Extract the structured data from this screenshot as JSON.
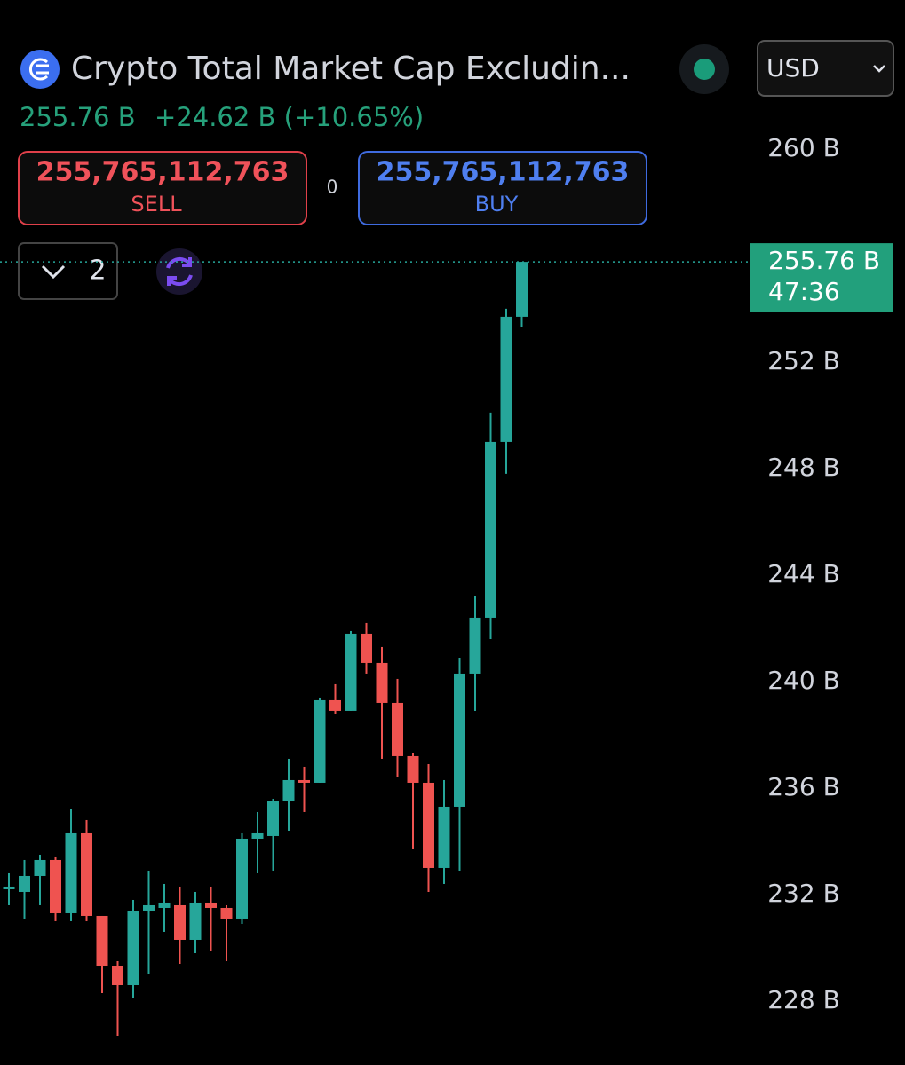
{
  "header": {
    "title": "Crypto Total Market Cap Excludin...",
    "currency": "USD",
    "price": "255.76 B",
    "change": "+24.62 B (+10.65%)",
    "sell_price": "255,765,112,763",
    "sell_label": "SELL",
    "spread": "0",
    "buy_price": "255,765,112,763",
    "buy_label": "BUY",
    "indicator_count": "2"
  },
  "chart_data": {
    "type": "candlestick",
    "up_color": "#26a69a",
    "down_color": "#ef5350",
    "open": [
      232.2,
      232.1,
      232.7,
      233.3,
      231.3,
      234.3,
      231.2,
      229.3,
      228.6,
      231.4,
      231.5,
      231.6,
      230.3,
      231.7,
      231.5,
      231.1,
      234.1,
      234.2,
      235.5,
      236.3,
      236.2,
      239.3,
      238.9,
      241.8,
      240.7,
      239.2,
      237.2,
      236.2,
      233.0,
      235.3,
      240.3,
      242.4,
      249.0,
      253.7
    ],
    "high": [
      232.8,
      233.3,
      233.5,
      233.4,
      235.2,
      234.8,
      231.2,
      229.5,
      231.8,
      232.9,
      232.4,
      232.3,
      232.1,
      232.3,
      231.6,
      234.3,
      235.1,
      235.6,
      237.1,
      236.8,
      239.4,
      239.9,
      241.9,
      242.2,
      241.3,
      240.1,
      237.3,
      236.9,
      236.3,
      240.9,
      243.2,
      250.1,
      254.0,
      255.76
    ],
    "low": [
      231.6,
      231.1,
      231.6,
      231.0,
      231.0,
      231.0,
      228.3,
      226.7,
      228.1,
      229.0,
      230.6,
      229.4,
      229.8,
      229.9,
      229.5,
      230.9,
      232.8,
      232.9,
      234.4,
      235.1,
      236.2,
      238.8,
      238.9,
      240.3,
      237.1,
      236.4,
      233.7,
      232.1,
      232.4,
      232.9,
      238.9,
      241.6,
      247.8,
      253.3
    ],
    "close": [
      232.3,
      232.7,
      233.3,
      231.3,
      234.3,
      231.2,
      229.3,
      228.6,
      231.4,
      231.6,
      231.7,
      230.3,
      231.7,
      231.5,
      231.1,
      234.1,
      234.3,
      235.5,
      236.3,
      236.2,
      239.3,
      238.9,
      241.8,
      240.7,
      239.2,
      237.2,
      236.2,
      233.0,
      235.3,
      240.3,
      242.4,
      249.0,
      253.7,
      255.76
    ],
    "ylim": [
      225.6,
      260.93
    ],
    "yticks": [
      {
        "value": 228,
        "label": "228 B"
      },
      {
        "value": 232,
        "label": "232 B"
      },
      {
        "value": 236,
        "label": "236 B"
      },
      {
        "value": 240,
        "label": "240 B"
      },
      {
        "value": 244,
        "label": "244 B"
      },
      {
        "value": 248,
        "label": "248 B"
      },
      {
        "value": 252,
        "label": "252 B"
      },
      {
        "value": 260,
        "label": "260 B"
      }
    ],
    "price_line": {
      "value": 255.76,
      "label": "255.76 B"
    },
    "countdown": "47:36"
  }
}
